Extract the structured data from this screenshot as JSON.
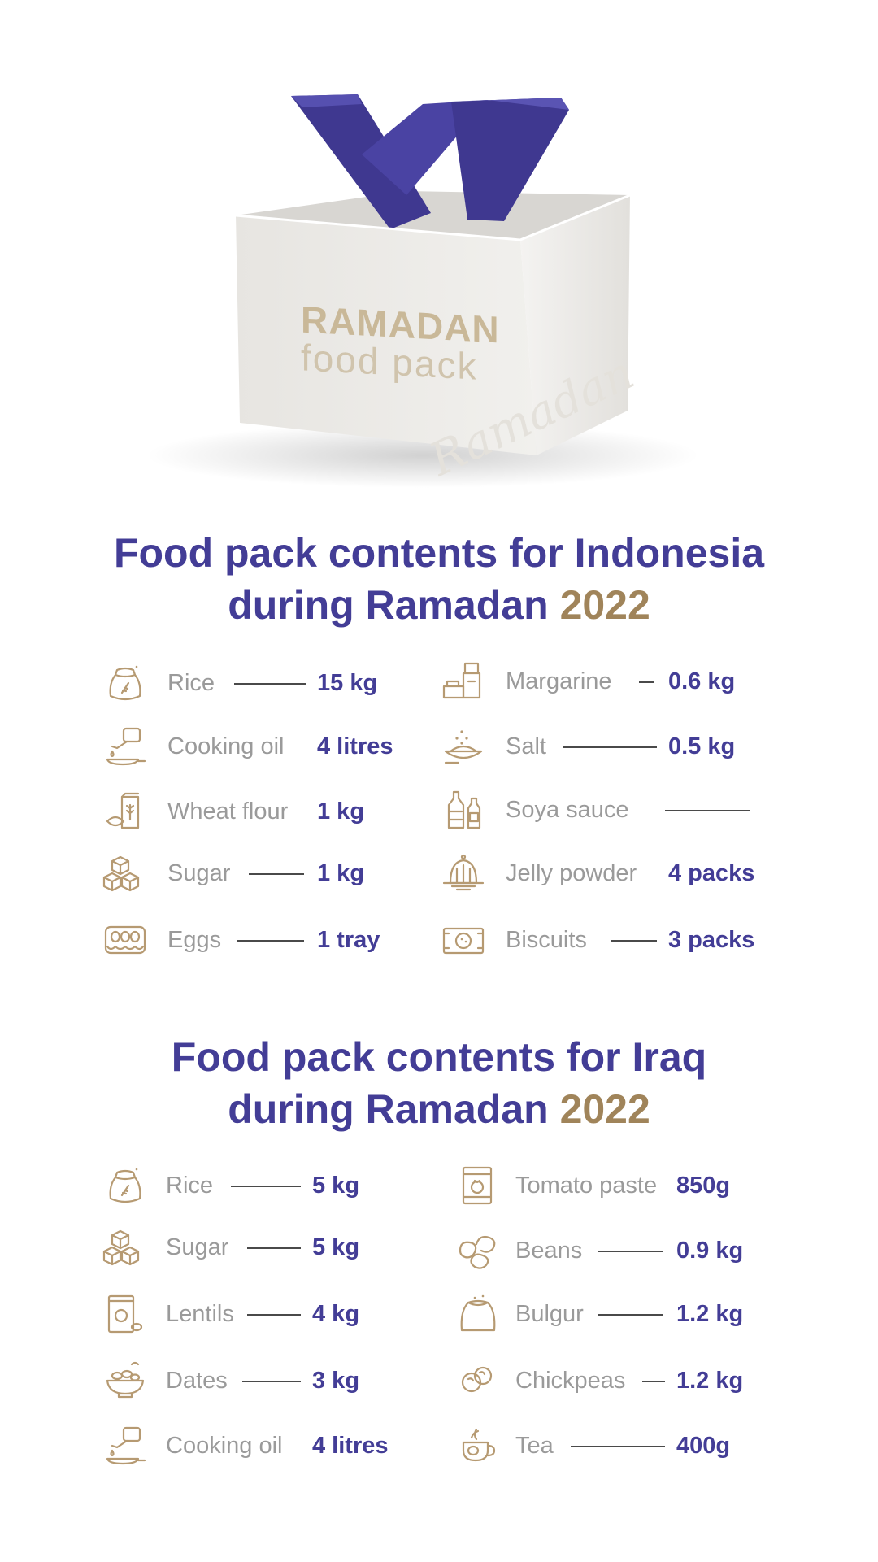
{
  "hero": {
    "box_line1": "RAMADAN",
    "box_line2": "food pack",
    "watermark": "Ramadan"
  },
  "colors": {
    "primary": "#433d96",
    "accent": "#a0845a",
    "muted": "#9a9a9a",
    "icon": "#b69a72"
  },
  "indonesia": {
    "title_line1": "Food pack contents for Indonesia",
    "title_line2_text": "during Ramadan ",
    "title_year": "2022",
    "left": [
      {
        "name": "Rice",
        "qty": "15 kg",
        "icon": "rice-sack-icon"
      },
      {
        "name": "Cooking oil",
        "qty": "4 litres",
        "icon": "cooking-oil-icon"
      },
      {
        "name": "Wheat flour",
        "qty": "1 kg",
        "icon": "wheat-flour-icon"
      },
      {
        "name": "Sugar",
        "qty": "1 kg",
        "icon": "sugar-cubes-icon"
      },
      {
        "name": "Eggs",
        "qty": "1 tray",
        "icon": "egg-tray-icon"
      }
    ],
    "right": [
      {
        "name": "Margarine",
        "qty": "0.6 kg",
        "icon": "margarine-icon"
      },
      {
        "name": "Salt",
        "qty": "0.5 kg",
        "icon": "salt-icon"
      },
      {
        "name": "Soya sauce",
        "qty": "",
        "icon": "soya-sauce-icon"
      },
      {
        "name": "Jelly powder",
        "qty": "4 packs",
        "icon": "jelly-icon"
      },
      {
        "name": "Biscuits",
        "qty": "3 packs",
        "icon": "biscuits-icon"
      }
    ]
  },
  "iraq": {
    "title_line1": "Food pack contents for Iraq",
    "title_line2_text": "during Ramadan ",
    "title_year": "2022",
    "left": [
      {
        "name": "Rice",
        "qty": "5 kg",
        "icon": "rice-sack-icon"
      },
      {
        "name": "Sugar",
        "qty": "5 kg",
        "icon": "sugar-cubes-icon"
      },
      {
        "name": "Lentils",
        "qty": "4 kg",
        "icon": "lentils-bag-icon"
      },
      {
        "name": "Dates",
        "qty": "3 kg",
        "icon": "dates-bowl-icon"
      },
      {
        "name": "Cooking oil",
        "qty": "4 litres",
        "icon": "cooking-oil-icon"
      }
    ],
    "right": [
      {
        "name": "Tomato paste",
        "qty": "850g",
        "icon": "tomato-paste-icon"
      },
      {
        "name": "Beans",
        "qty": "0.9 kg",
        "icon": "beans-icon"
      },
      {
        "name": "Bulgur",
        "qty": "1.2 kg",
        "icon": "bulgur-sack-icon"
      },
      {
        "name": "Chickpeas",
        "qty": "1.2 kg",
        "icon": "chickpeas-icon"
      },
      {
        "name": "Tea",
        "qty": "400g",
        "icon": "tea-cup-icon"
      }
    ]
  }
}
